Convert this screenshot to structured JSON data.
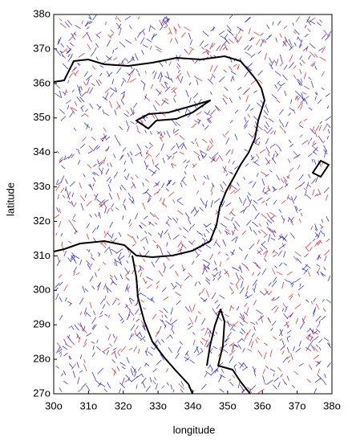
{
  "chart_data": {
    "type": "map",
    "x_label": "longitude",
    "y_label": "latitude",
    "xlim": [
      30,
      38
    ],
    "ylim": [
      27,
      38
    ],
    "xticks": [
      {
        "value": 30,
        "label": "30o"
      },
      {
        "value": 31,
        "label": "31o"
      },
      {
        "value": 32,
        "label": "32o"
      },
      {
        "value": 33,
        "label": "33o"
      },
      {
        "value": 34,
        "label": "34o"
      },
      {
        "value": 35,
        "label": "35o"
      },
      {
        "value": 36,
        "label": "36o"
      },
      {
        "value": 37,
        "label": "37o"
      },
      {
        "value": 38,
        "label": "38o"
      }
    ],
    "yticks": [
      {
        "value": 27,
        "label": "27o"
      },
      {
        "value": 28,
        "label": "28o"
      },
      {
        "value": 29,
        "label": "29o"
      },
      {
        "value": 30,
        "label": "30o"
      },
      {
        "value": 31,
        "label": "31o"
      },
      {
        "value": 32,
        "label": "32o"
      },
      {
        "value": 33,
        "label": "33o"
      },
      {
        "value": 34,
        "label": "34o"
      },
      {
        "value": 35,
        "label": "35o"
      },
      {
        "value": 36,
        "label": "36o"
      },
      {
        "value": 37,
        "label": "37o"
      },
      {
        "value": 38,
        "label": "38o"
      }
    ],
    "colors": [
      "#e02020",
      "#2020d0"
    ]
  }
}
